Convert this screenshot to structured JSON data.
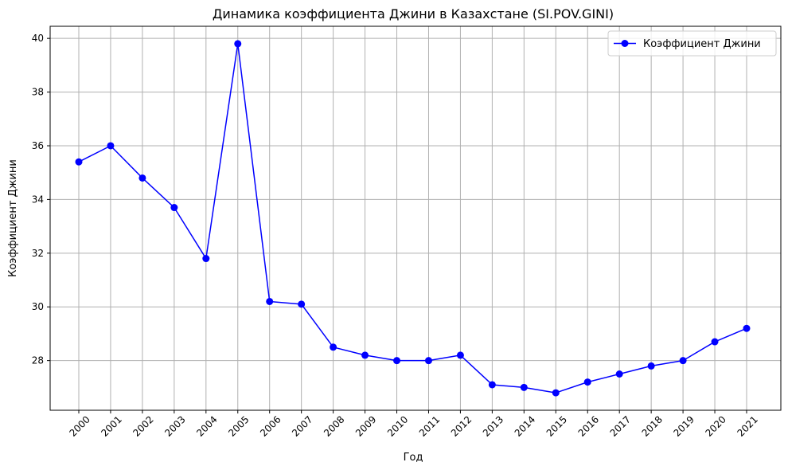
{
  "chart_data": {
    "type": "line",
    "title": "Динамика коэффициента Джини в Казахстане (SI.POV.GINI)",
    "xlabel": "Год",
    "ylabel": "Коэффициент Джини",
    "categories": [
      "2000",
      "2001",
      "2002",
      "2003",
      "2004",
      "2005",
      "2006",
      "2007",
      "2008",
      "2009",
      "2010",
      "2011",
      "2012",
      "2013",
      "2014",
      "2015",
      "2016",
      "2017",
      "2018",
      "2019",
      "2020",
      "2021"
    ],
    "series": [
      {
        "name": "Коэффициент Джини",
        "color": "#0000ff",
        "marker": "circle",
        "values": [
          35.4,
          36.0,
          34.8,
          33.7,
          31.8,
          39.8,
          30.2,
          30.1,
          28.5,
          28.2,
          28.0,
          28.0,
          28.2,
          27.1,
          27.0,
          26.8,
          27.2,
          27.5,
          27.8,
          28.0,
          28.7,
          29.2
        ]
      }
    ],
    "yticks": [
      28,
      30,
      32,
      34,
      36,
      38,
      40
    ],
    "ylim": [
      26.15,
      40.45
    ],
    "grid": true,
    "legend": "top-right"
  }
}
